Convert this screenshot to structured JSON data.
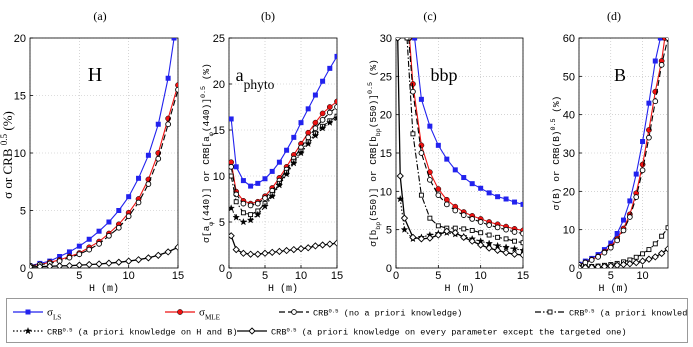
{
  "figure": {
    "y_title_main": "σ or CRB",
    "y_title_sup": "0.5",
    "y_title_suffix": "(%)"
  },
  "legend": {
    "entries": [
      {
        "id": "ls",
        "label_main": "σ",
        "label_sub": "LS",
        "label_rest": "",
        "color": "#2222ee",
        "dash": "",
        "marker": "square"
      },
      {
        "id": "mle",
        "label_main": "σ",
        "label_sub": "MLE",
        "label_rest": "",
        "color": "#ee1111",
        "dash": "",
        "marker": "circle-filled"
      },
      {
        "id": "crb_none",
        "label_main": "CRB",
        "label_sup": "0.5",
        "label_rest": "(no a priori knowledge)",
        "color": "#000000",
        "dash": "6,3",
        "marker": "circle-open"
      },
      {
        "id": "crb_h",
        "label_main": "CRB",
        "label_sup": "0.5",
        "label_rest": "(a priori knowledge on H)",
        "color": "#000000",
        "dash": "6,2,1.5,2",
        "marker": "square-open"
      },
      {
        "id": "crb_hb",
        "label_main": "CRB",
        "label_sup": "0.5",
        "label_rest": "(a priori knowledge on H and B)",
        "color": "#000000",
        "dash": "1.5,2",
        "marker": "star"
      },
      {
        "id": "crb_all",
        "label_main": "CRB",
        "label_sup": "0.5",
        "label_rest": "(a priori knowledge on every parameter except the targeted one)",
        "color": "#000000",
        "dash": "",
        "marker": "diamond"
      }
    ]
  },
  "chart_data": [
    {
      "type": "line",
      "panel_letter": "(a)",
      "annotation": "H",
      "annotation_sub": "",
      "xlabel": "H (m)",
      "ylabel": "",
      "xlim": [
        0,
        15
      ],
      "ylim": [
        0,
        20
      ],
      "xticks": [
        "0",
        "5",
        "10",
        "15"
      ],
      "yticks": [
        "0",
        "5",
        "10",
        "15",
        "20"
      ],
      "series": [
        {
          "id": "ls",
          "x": [
            0,
            1,
            2,
            3,
            4,
            5,
            6,
            7,
            8,
            9,
            10,
            11,
            12,
            13,
            14,
            14.6
          ],
          "y": [
            0.2,
            0.4,
            0.6,
            1.0,
            1.4,
            1.9,
            2.5,
            3.2,
            4.0,
            5.0,
            6.2,
            7.8,
            9.8,
            12.5,
            16.5,
            20
          ]
        },
        {
          "id": "mle",
          "x": [
            0,
            1,
            2,
            3,
            4,
            5,
            6,
            7,
            8,
            9,
            10,
            11,
            12,
            13,
            14,
            15
          ],
          "y": [
            0.2,
            0.3,
            0.5,
            0.7,
            1.0,
            1.3,
            1.8,
            2.3,
            3.0,
            3.8,
            4.8,
            6.0,
            7.7,
            10.0,
            13.0,
            15.9
          ]
        },
        {
          "id": "crb_none",
          "x": [
            0,
            1,
            2,
            3,
            4,
            5,
            6,
            7,
            8,
            9,
            10,
            11,
            12,
            13,
            14,
            15
          ],
          "y": [
            0.2,
            0.3,
            0.4,
            0.6,
            0.9,
            1.2,
            1.6,
            2.1,
            2.8,
            3.5,
            4.5,
            5.7,
            7.3,
            9.5,
            12.5,
            15.5
          ]
        },
        {
          "id": "crb_all",
          "x": [
            0,
            1,
            2,
            3,
            4,
            5,
            6,
            7,
            8,
            9,
            10,
            11,
            12,
            13,
            14,
            15
          ],
          "y": [
            0.1,
            0.12,
            0.15,
            0.18,
            0.2,
            0.25,
            0.3,
            0.35,
            0.42,
            0.5,
            0.6,
            0.72,
            0.88,
            1.1,
            1.4,
            1.8
          ]
        }
      ]
    },
    {
      "type": "line",
      "panel_letter": "(b)",
      "annotation": "a",
      "annotation_sub": "phyto",
      "xlabel": "H (m)",
      "ylabel": "σ[aφ(440)] or CRB[aφ(440)]^0.5 (%)",
      "ylabel_parts": [
        "σ[a",
        "φ",
        "(440)] or CRB[a",
        "φ",
        "(440)]",
        "0.5",
        " (%)"
      ],
      "xlim": [
        0,
        15
      ],
      "ylim": [
        0,
        25
      ],
      "xticks": [
        "0",
        "5",
        "10",
        "15"
      ],
      "yticks": [
        "0",
        "5",
        "10",
        "15",
        "20",
        "25"
      ],
      "series": [
        {
          "id": "ls",
          "x": [
            0.3,
            1,
            2,
            3,
            4,
            5,
            6,
            7,
            8,
            9,
            10,
            11,
            12,
            13,
            14,
            15
          ],
          "y": [
            16.2,
            11.0,
            9.5,
            8.9,
            9.2,
            9.7,
            10.5,
            11.5,
            12.8,
            14.2,
            15.8,
            17.3,
            18.8,
            20.3,
            21.7,
            23.0
          ]
        },
        {
          "id": "mle",
          "x": [
            0.3,
            1,
            2,
            3,
            4,
            5,
            6,
            7,
            8,
            9,
            10,
            11,
            12,
            13,
            14,
            15
          ],
          "y": [
            11.5,
            8.3,
            7.3,
            7.0,
            7.2,
            7.8,
            8.7,
            9.8,
            11.0,
            12.3,
            13.5,
            14.7,
            15.8,
            16.8,
            17.5,
            18.1
          ]
        },
        {
          "id": "crb_none",
          "x": [
            0.3,
            1,
            2,
            3,
            4,
            5,
            6,
            7,
            8,
            9,
            10,
            11,
            12,
            13,
            14,
            15
          ],
          "y": [
            11.0,
            8.0,
            7.0,
            6.8,
            7.0,
            7.6,
            8.4,
            9.5,
            10.7,
            11.9,
            13.1,
            14.2,
            15.2,
            16.1,
            16.9,
            17.5
          ]
        },
        {
          "id": "crb_h",
          "x": [
            0.3,
            1,
            2,
            3,
            4,
            5,
            6,
            7,
            8,
            9,
            10,
            11,
            12,
            13,
            14,
            15
          ],
          "y": [
            10.0,
            7.2,
            6.0,
            5.8,
            6.2,
            7.0,
            8.0,
            9.2,
            10.4,
            11.6,
            12.7,
            13.7,
            14.6,
            15.4,
            16.0,
            16.5
          ]
        },
        {
          "id": "crb_hb",
          "x": [
            0.3,
            1,
            2,
            3,
            4,
            5,
            6,
            7,
            8,
            9,
            10,
            11,
            12,
            13,
            14,
            15
          ],
          "y": [
            6.5,
            5.5,
            5.0,
            5.2,
            5.8,
            6.7,
            7.8,
            9.0,
            10.2,
            11.4,
            12.5,
            13.5,
            14.4,
            15.2,
            15.8,
            16.3
          ]
        },
        {
          "id": "crb_all",
          "x": [
            0.3,
            1,
            2,
            3,
            4,
            5,
            6,
            7,
            8,
            9,
            10,
            11,
            12,
            13,
            14,
            15
          ],
          "y": [
            3.5,
            2.0,
            1.6,
            1.5,
            1.5,
            1.6,
            1.7,
            1.8,
            1.9,
            2.0,
            2.1,
            2.2,
            2.4,
            2.5,
            2.6,
            2.7
          ]
        }
      ]
    },
    {
      "type": "line",
      "panel_letter": "(c)",
      "annotation": "bbp",
      "annotation_sub": "",
      "xlabel": "H (m)",
      "ylabel": "σ[bbp(550)] or CRB[bbp(550)]^0.5 (%)",
      "ylabel_parts": [
        "σ[b",
        "bp",
        "(550)] or CRB[b",
        "bp",
        "(550)]",
        "0.5",
        " (%)"
      ],
      "xlim": [
        0,
        15
      ],
      "ylim": [
        0,
        30
      ],
      "xticks": [
        "0",
        "5",
        "10",
        "15"
      ],
      "yticks": [
        "0",
        "5",
        "10",
        "15",
        "20",
        "25",
        "30"
      ],
      "series": [
        {
          "id": "ls",
          "x": [
            2.2,
            3,
            4,
            5,
            6,
            7,
            8,
            9,
            10,
            11,
            12,
            13,
            14,
            15
          ],
          "y": [
            30,
            22,
            18.5,
            16.0,
            14.2,
            12.8,
            11.8,
            11.0,
            10.4,
            9.8,
            9.3,
            9.0,
            8.6,
            8.3
          ]
        },
        {
          "id": "mle",
          "x": [
            1.6,
            2,
            3,
            4,
            5,
            6,
            7,
            8,
            9,
            10,
            11,
            12,
            13,
            14,
            15
          ],
          "y": [
            30,
            24,
            16.0,
            12.5,
            10.3,
            8.9,
            8.0,
            7.3,
            6.8,
            6.4,
            6.0,
            5.7,
            5.4,
            5.1,
            4.9
          ]
        },
        {
          "id": "crb_none",
          "x": [
            1.5,
            2,
            3,
            4,
            5,
            6,
            7,
            8,
            9,
            10,
            11,
            12,
            13,
            14,
            15
          ],
          "y": [
            30,
            23,
            15.0,
            11.5,
            9.5,
            8.3,
            7.5,
            6.9,
            6.4,
            6.0,
            5.6,
            5.3,
            5.0,
            4.7,
            4.5
          ]
        },
        {
          "id": "crb_h",
          "x": [
            1.3,
            2,
            3,
            4,
            5,
            6,
            7,
            8,
            9,
            10,
            11,
            12,
            13,
            14,
            15
          ],
          "y": [
            30,
            17.5,
            9.5,
            6.5,
            5.5,
            5.2,
            5.2,
            5.1,
            4.9,
            4.6,
            4.3,
            4.0,
            3.8,
            3.5,
            3.3
          ]
        },
        {
          "id": "crb_hb",
          "x": [
            0.5,
            1,
            2,
            3,
            4,
            5,
            6,
            7,
            8,
            9,
            10,
            11,
            12,
            13,
            14,
            15
          ],
          "y": [
            9.0,
            5.0,
            3.8,
            4.0,
            4.3,
            4.5,
            4.6,
            4.4,
            4.1,
            3.8,
            3.5,
            3.2,
            2.9,
            2.7,
            2.5,
            2.3
          ]
        },
        {
          "id": "crb_all",
          "x": [
            0.2,
            0.5,
            1,
            2,
            3,
            4,
            5,
            6,
            7,
            8,
            9,
            10,
            11,
            12,
            13,
            14,
            15
          ],
          "y": [
            30,
            12.0,
            6.5,
            4.0,
            3.8,
            3.9,
            4.3,
            4.8,
            4.6,
            4.0,
            3.5,
            3.0,
            2.6,
            2.3,
            2.0,
            1.8,
            1.7
          ]
        }
      ]
    },
    {
      "type": "line",
      "panel_letter": "(d)",
      "annotation": "B",
      "annotation_sub": "",
      "xlabel": "H (m)",
      "ylabel": "σ(B) or CRB(B)^0.5 (%)",
      "ylabel_parts": [
        "σ(B) or CRB(B)",
        "0.5",
        " (%)"
      ],
      "xlim": [
        0,
        14
      ],
      "ylim": [
        0,
        60
      ],
      "xticks": [
        "0",
        "5",
        "10"
      ],
      "yticks": [
        "0",
        "10",
        "20",
        "30",
        "40",
        "50",
        "60"
      ],
      "series": [
        {
          "id": "ls",
          "x": [
            0,
            1,
            2,
            3,
            4,
            5,
            6,
            7,
            8,
            9,
            10,
            11,
            12,
            12.8
          ],
          "y": [
            1.0,
            1.8,
            2.5,
            3.5,
            4.8,
            6.5,
            9.0,
            12.5,
            17.5,
            24.5,
            33.0,
            43.0,
            54.0,
            60
          ]
        },
        {
          "id": "mle",
          "x": [
            0,
            1,
            2,
            3,
            4,
            5,
            6,
            7,
            8,
            9,
            10,
            11,
            12,
            13,
            13.5
          ],
          "y": [
            0.8,
            1.5,
            2.2,
            3.0,
            4.2,
            5.6,
            7.6,
            10.3,
            14.0,
            19.5,
            27.0,
            36.0,
            46.0,
            54.0,
            60
          ]
        },
        {
          "id": "crb_none",
          "x": [
            0,
            1,
            2,
            3,
            4,
            5,
            6,
            7,
            8,
            9,
            10,
            11,
            12,
            13,
            14
          ],
          "y": [
            0.8,
            1.4,
            2.1,
            2.9,
            4.0,
            5.3,
            7.2,
            9.8,
            13.3,
            18.5,
            25.5,
            34.0,
            43.5,
            53.0,
            60
          ]
        },
        {
          "id": "crb_h",
          "x": [
            0,
            1,
            2,
            3,
            4,
            5,
            6,
            7,
            8,
            9,
            10,
            11,
            12,
            13,
            14
          ],
          "y": [
            0.2,
            0.3,
            0.4,
            0.5,
            0.7,
            0.9,
            1.2,
            1.6,
            2.1,
            2.8,
            3.7,
            4.8,
            6.3,
            8.3,
            10.5
          ]
        },
        {
          "id": "crb_all",
          "x": [
            0,
            1,
            2,
            3,
            4,
            5,
            6,
            7,
            8,
            9,
            10,
            11,
            12,
            13,
            14
          ],
          "y": [
            0.1,
            0.15,
            0.2,
            0.3,
            0.4,
            0.5,
            0.7,
            0.9,
            1.1,
            1.4,
            1.8,
            2.3,
            2.9,
            3.8,
            5.0
          ]
        }
      ]
    }
  ]
}
